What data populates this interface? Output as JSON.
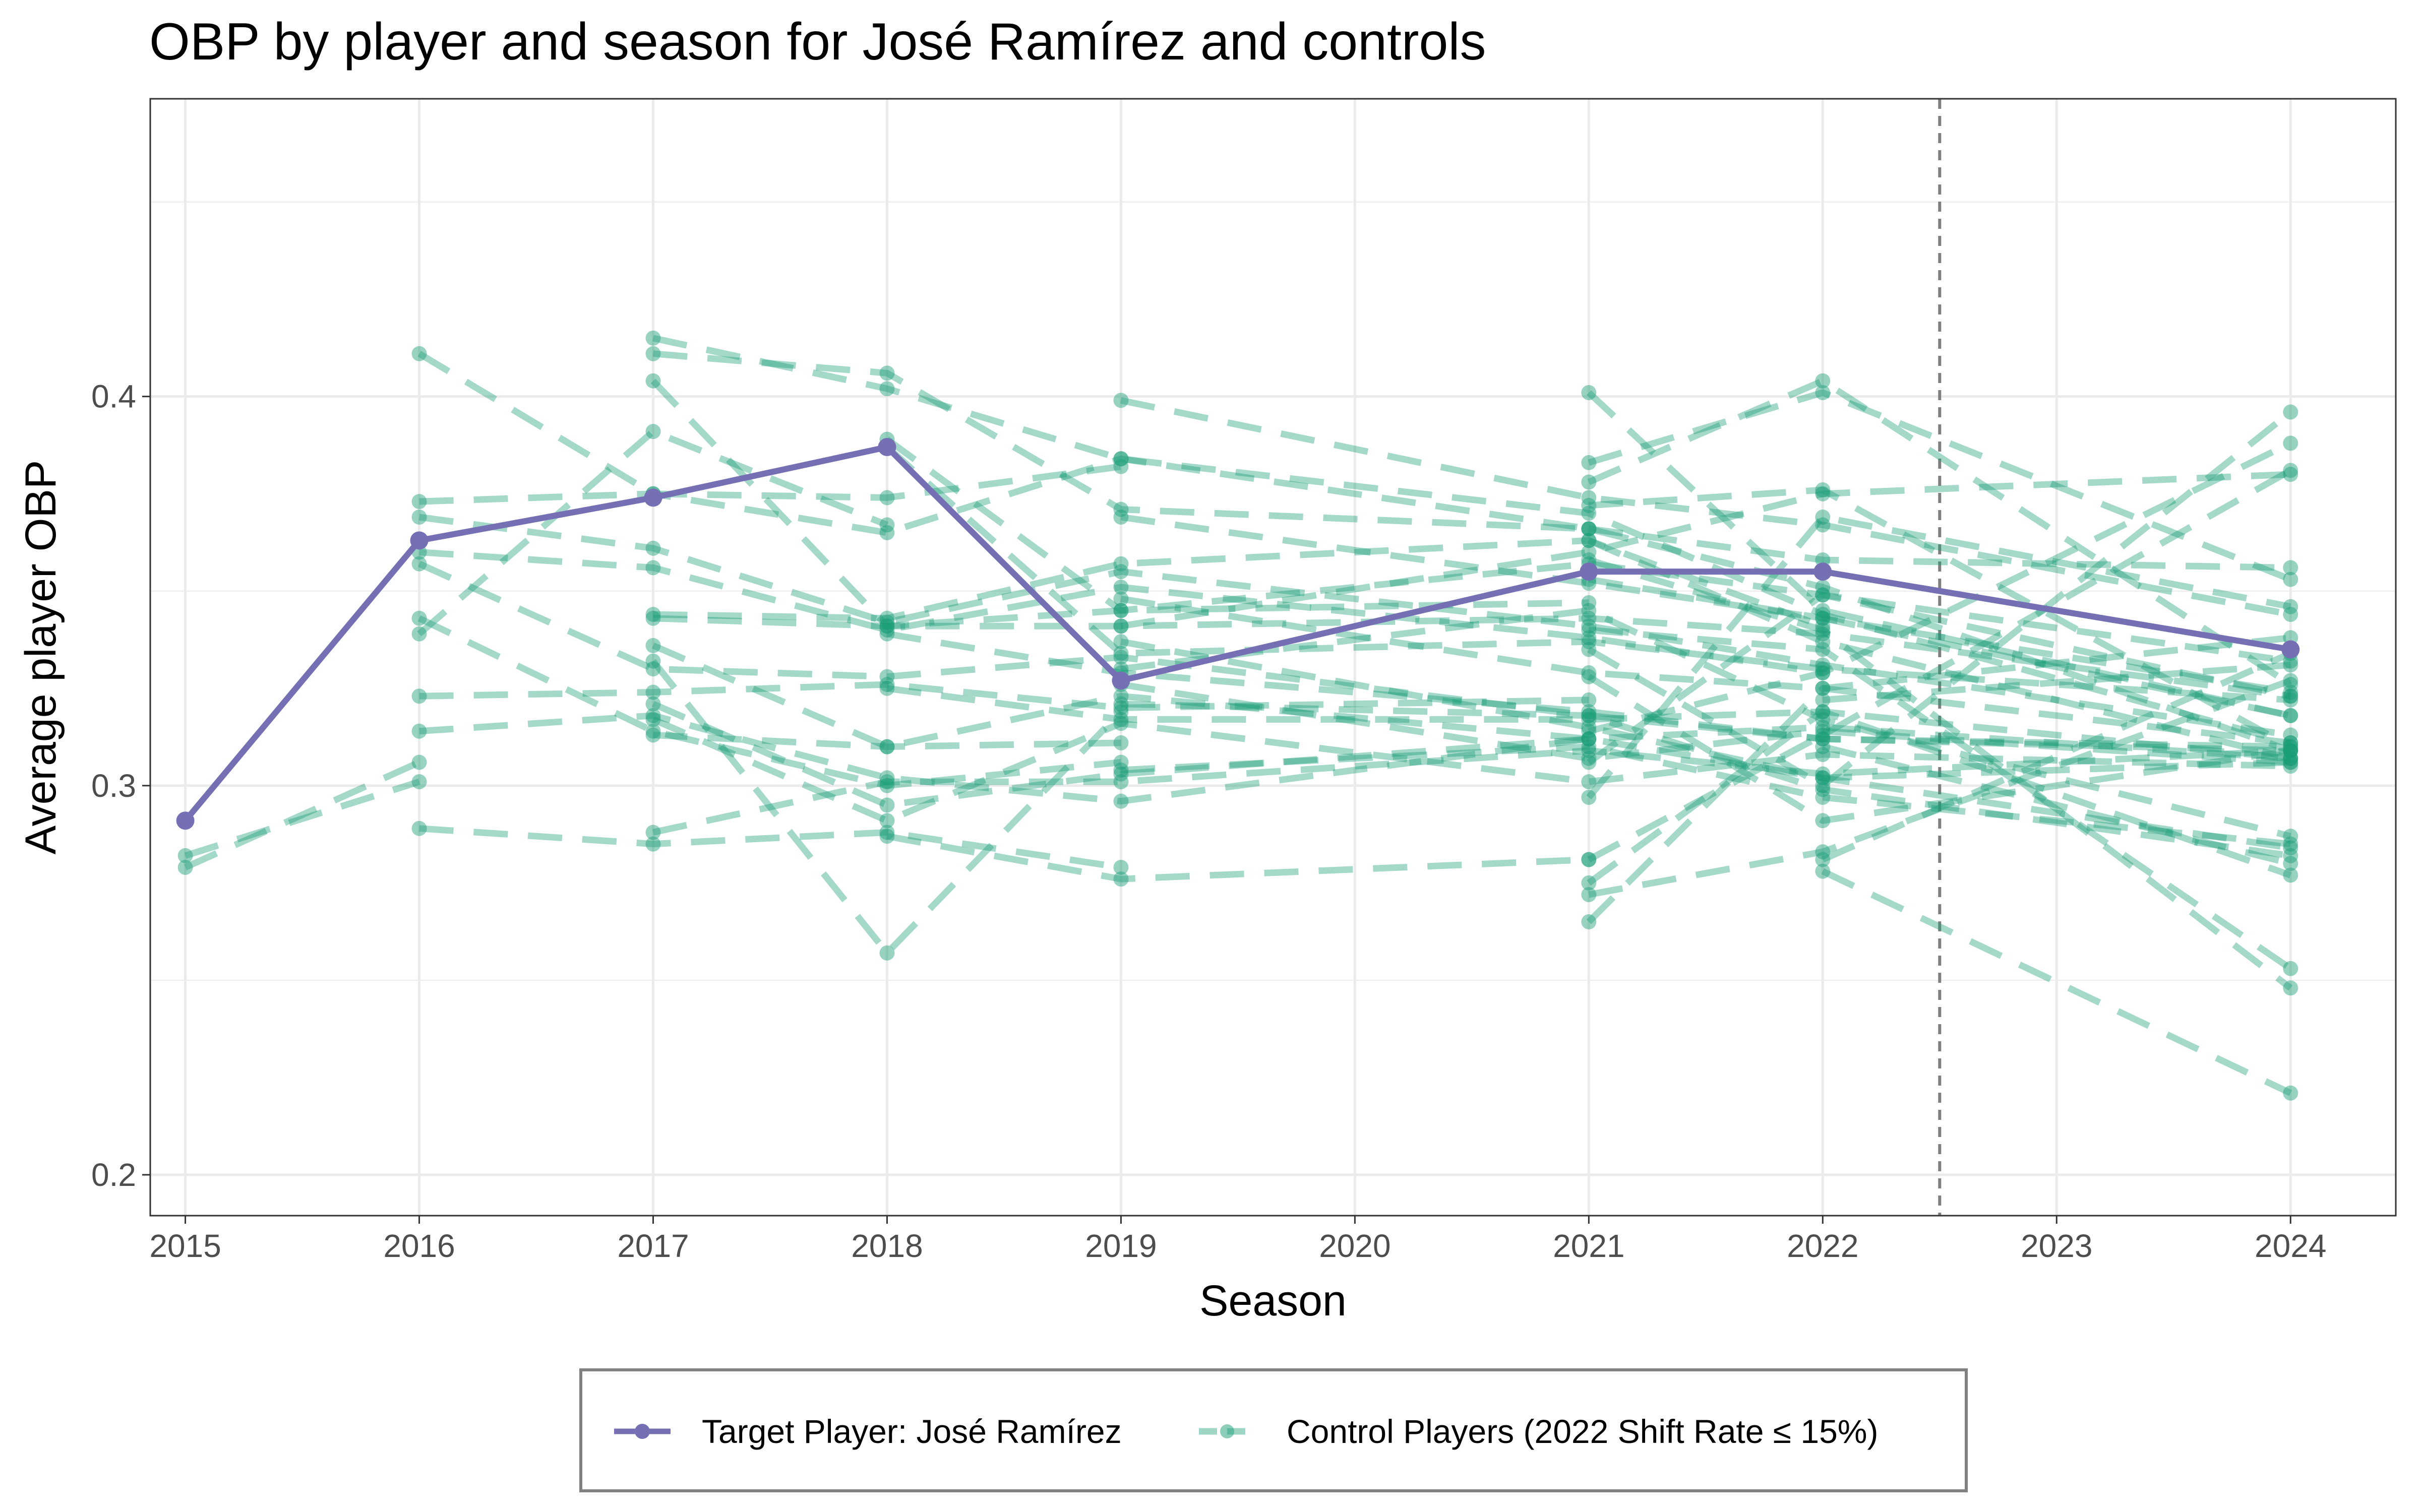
{
  "chart_data": {
    "type": "line",
    "title": "OBP by player and season for José Ramírez and controls",
    "xlabel": "Season",
    "ylabel": "Average player OBP",
    "xlim": [
      2014.85,
      2024.45
    ],
    "ylim": [
      0.1895,
      0.4765
    ],
    "x_ticks": [
      "2015",
      "2016",
      "2017",
      "2018",
      "2019",
      "2020",
      "2021",
      "2022",
      "2023",
      "2024"
    ],
    "y_ticks": [
      "0.2",
      "0.3",
      "0.4"
    ],
    "y_tick_values": [
      0.2,
      0.3,
      0.4
    ],
    "y_minor_values": [
      0.25,
      0.35,
      0.45
    ],
    "grid": true,
    "vline_x": 2022.5,
    "legend_position": "bottom",
    "colors": {
      "target": "#7570b3",
      "control": "#1b9e77",
      "vline": "#7f7f7f"
    },
    "legend": [
      {
        "label": "Target Player: José Ramírez",
        "style": "solid"
      },
      {
        "label": "Control Players (2022 Shift Rate ≤ 15%)",
        "style": "dashed"
      }
    ],
    "target_series": {
      "name": "Target Player: José Ramírez",
      "x": [
        2015,
        2016,
        2017,
        2018,
        2019,
        2021,
        2022,
        2024
      ],
      "y": [
        0.291,
        0.363,
        0.374,
        0.387,
        0.327,
        0.355,
        0.355,
        0.335
      ]
    },
    "control_series": [
      {
        "x": [
          2015,
          2016
        ],
        "y": [
          0.282,
          0.301
        ]
      },
      {
        "x": [
          2015,
          2016
        ],
        "y": [
          0.279,
          0.306
        ]
      },
      {
        "x": [
          2016,
          2017,
          2018,
          2019
        ],
        "y": [
          0.411,
          0.375,
          0.374,
          0.382
        ]
      },
      {
        "x": [
          2016,
          2017,
          2018,
          2019,
          2021
        ],
        "y": [
          0.373,
          0.375,
          0.365,
          0.384,
          0.366
        ]
      },
      {
        "x": [
          2016,
          2017,
          2018,
          2019,
          2021,
          2022,
          2024
        ],
        "y": [
          0.369,
          0.361,
          0.342,
          0.355,
          0.341,
          0.331,
          0.313
        ]
      },
      {
        "x": [
          2016,
          2017,
          2018,
          2019,
          2021,
          2022
        ],
        "y": [
          0.36,
          0.356,
          0.34,
          0.351,
          0.338,
          0.329
        ]
      },
      {
        "x": [
          2016,
          2017,
          2018,
          2019,
          2021,
          2022,
          2024
        ],
        "y": [
          0.357,
          0.33,
          0.328,
          0.333,
          0.318,
          0.312,
          0.31
        ]
      },
      {
        "x": [
          2016,
          2017,
          2018,
          2019
        ],
        "y": [
          0.343,
          0.314,
          0.3,
          0.306
        ]
      },
      {
        "x": [
          2016,
          2017,
          2018
        ],
        "y": [
          0.339,
          0.391,
          0.367
        ]
      },
      {
        "x": [
          2016,
          2017,
          2018,
          2019,
          2021
        ],
        "y": [
          0.323,
          0.324,
          0.326,
          0.32,
          0.322
        ]
      },
      {
        "x": [
          2016,
          2017,
          2018,
          2019,
          2021,
          2022,
          2024
        ],
        "y": [
          0.314,
          0.318,
          0.302,
          0.296,
          0.312,
          0.302,
          0.306
        ]
      },
      {
        "x": [
          2016,
          2017,
          2018,
          2019
        ],
        "y": [
          0.289,
          0.285,
          0.288,
          0.279
        ]
      },
      {
        "x": [
          2017,
          2018,
          2019,
          2021,
          2022,
          2024
        ],
        "y": [
          0.415,
          0.402,
          0.384,
          0.37,
          0.344,
          0.311
        ]
      },
      {
        "x": [
          2017,
          2018,
          2019,
          2021,
          2022,
          2024
        ],
        "y": [
          0.411,
          0.406,
          0.371,
          0.366,
          0.351,
          0.309
        ]
      },
      {
        "x": [
          2017,
          2018,
          2019,
          2021
        ],
        "y": [
          0.404,
          0.341,
          0.345,
          0.347
        ]
      },
      {
        "x": [
          2017,
          2018,
          2019,
          2021,
          2022
        ],
        "y": [
          0.344,
          0.343,
          0.357,
          0.363,
          0.341
        ]
      },
      {
        "x": [
          2017,
          2018,
          2019,
          2021,
          2022,
          2024
        ],
        "y": [
          0.343,
          0.341,
          0.341,
          0.343,
          0.339,
          0.323
        ]
      },
      {
        "x": [
          2017,
          2018,
          2019,
          2021
        ],
        "y": [
          0.336,
          0.31,
          0.323,
          0.312
        ]
      },
      {
        "x": [
          2017,
          2018,
          2019
        ],
        "y": [
          0.332,
          0.257,
          0.319
        ]
      },
      {
        "x": [
          2017,
          2018,
          2019,
          2021,
          2022,
          2024
        ],
        "y": [
          0.321,
          0.295,
          0.303,
          0.312,
          0.315,
          0.307
        ]
      },
      {
        "x": [
          2017,
          2018,
          2019,
          2021,
          2022,
          2024
        ],
        "y": [
          0.317,
          0.291,
          0.316,
          0.301,
          0.308,
          0.305
        ]
      },
      {
        "x": [
          2017,
          2018,
          2019
        ],
        "y": [
          0.313,
          0.31,
          0.311
        ]
      },
      {
        "x": [
          2017,
          2018,
          2019,
          2021,
          2022,
          2024
        ],
        "y": [
          0.288,
          0.301,
          0.301,
          0.309,
          0.303,
          0.309
        ]
      },
      {
        "x": [
          2018,
          2019,
          2021,
          2022,
          2024
        ],
        "y": [
          0.389,
          0.345,
          0.357,
          0.349,
          0.323
        ]
      },
      {
        "x": [
          2018,
          2019,
          2021,
          2022,
          2024
        ],
        "y": [
          0.387,
          0.334,
          0.337,
          0.33,
          0.322
        ]
      },
      {
        "x": [
          2018,
          2019,
          2021,
          2022,
          2024
        ],
        "y": [
          0.339,
          0.329,
          0.319,
          0.312,
          0.309
        ]
      },
      {
        "x": [
          2018,
          2019,
          2021,
          2022,
          2024
        ],
        "y": [
          0.325,
          0.317,
          0.317,
          0.319,
          0.307
        ]
      },
      {
        "x": [
          2018,
          2019,
          2021
        ],
        "y": [
          0.287,
          0.276,
          0.281
        ]
      },
      {
        "x": [
          2019,
          2021,
          2022,
          2024
        ],
        "y": [
          0.399,
          0.374,
          0.367,
          0.344
        ]
      },
      {
        "x": [
          2019,
          2021,
          2022,
          2024
        ],
        "y": [
          0.369,
          0.352,
          0.343,
          0.318
        ]
      },
      {
        "x": [
          2019,
          2021,
          2022,
          2024
        ],
        "y": [
          0.348,
          0.329,
          0.325,
          0.311
        ]
      },
      {
        "x": [
          2019,
          2021,
          2022,
          2024
        ],
        "y": [
          0.341,
          0.36,
          0.375,
          0.38
        ]
      },
      {
        "x": [
          2019,
          2021,
          2022,
          2024
        ],
        "y": [
          0.337,
          0.315,
          0.302,
          0.284
        ]
      },
      {
        "x": [
          2019,
          2021,
          2022,
          2024
        ],
        "y": [
          0.33,
          0.345,
          0.317,
          0.287
        ]
      },
      {
        "x": [
          2019,
          2021,
          2022,
          2024
        ],
        "y": [
          0.326,
          0.307,
          0.314,
          0.306
        ]
      },
      {
        "x": [
          2019,
          2021,
          2022,
          2024
        ],
        "y": [
          0.321,
          0.318,
          0.299,
          0.282
        ]
      },
      {
        "x": [
          2019,
          2021,
          2022,
          2024
        ],
        "y": [
          0.304,
          0.31,
          0.297,
          0.285
        ]
      },
      {
        "x": [
          2021,
          2022,
          2024
        ],
        "y": [
          0.401,
          0.345,
          0.318
        ]
      },
      {
        "x": [
          2021,
          2022,
          2024
        ],
        "y": [
          0.383,
          0.401,
          0.353
        ]
      },
      {
        "x": [
          2021,
          2022,
          2024
        ],
        "y": [
          0.378,
          0.404,
          0.326
        ]
      },
      {
        "x": [
          2021,
          2022,
          2024
        ],
        "y": [
          0.372,
          0.376,
          0.31
        ]
      },
      {
        "x": [
          2021,
          2022,
          2024
        ],
        "y": [
          0.366,
          0.358,
          0.356
        ]
      },
      {
        "x": [
          2021,
          2022,
          2024
        ],
        "y": [
          0.363,
          0.337,
          0.307
        ]
      },
      {
        "x": [
          2021,
          2022,
          2024
        ],
        "y": [
          0.353,
          0.343,
          0.324
        ]
      },
      {
        "x": [
          2021,
          2022,
          2024
        ],
        "y": [
          0.335,
          0.3,
          0.396
        ]
      },
      {
        "x": [
          2021,
          2022,
          2024
        ],
        "y": [
          0.328,
          0.291,
          0.309
        ]
      },
      {
        "x": [
          2021,
          2022,
          2024
        ],
        "y": [
          0.314,
          0.329,
          0.388
        ]
      },
      {
        "x": [
          2021,
          2022,
          2024
        ],
        "y": [
          0.306,
          0.349,
          0.332
        ]
      },
      {
        "x": [
          2021,
          2022,
          2024
        ],
        "y": [
          0.297,
          0.369,
          0.346
        ]
      },
      {
        "x": [
          2021,
          2022,
          2024
        ],
        "y": [
          0.281,
          0.313,
          0.381
        ]
      },
      {
        "x": [
          2021,
          2022,
          2024
        ],
        "y": [
          0.275,
          0.319,
          0.277
        ]
      },
      {
        "x": [
          2021,
          2022,
          2024
        ],
        "y": [
          0.272,
          0.283,
          0.327
        ]
      },
      {
        "x": [
          2021,
          2022,
          2024
        ],
        "y": [
          0.265,
          0.325,
          0.338
        ]
      },
      {
        "x": [
          2021,
          2022,
          2024
        ],
        "y": [
          0.34,
          0.335,
          0.253
        ]
      },
      {
        "x": [
          2021,
          2022,
          2024
        ],
        "y": [
          0.358,
          0.34,
          0.248
        ]
      },
      {
        "x": [
          2022,
          2024
        ],
        "y": [
          0.278,
          0.221
        ]
      },
      {
        "x": [
          2022,
          2024
        ],
        "y": [
          0.281,
          0.334
        ]
      },
      {
        "x": [
          2022,
          2024
        ],
        "y": [
          0.31,
          0.28
        ]
      },
      {
        "x": [
          2022,
          2024
        ],
        "y": [
          0.322,
          0.331
        ]
      }
    ]
  }
}
